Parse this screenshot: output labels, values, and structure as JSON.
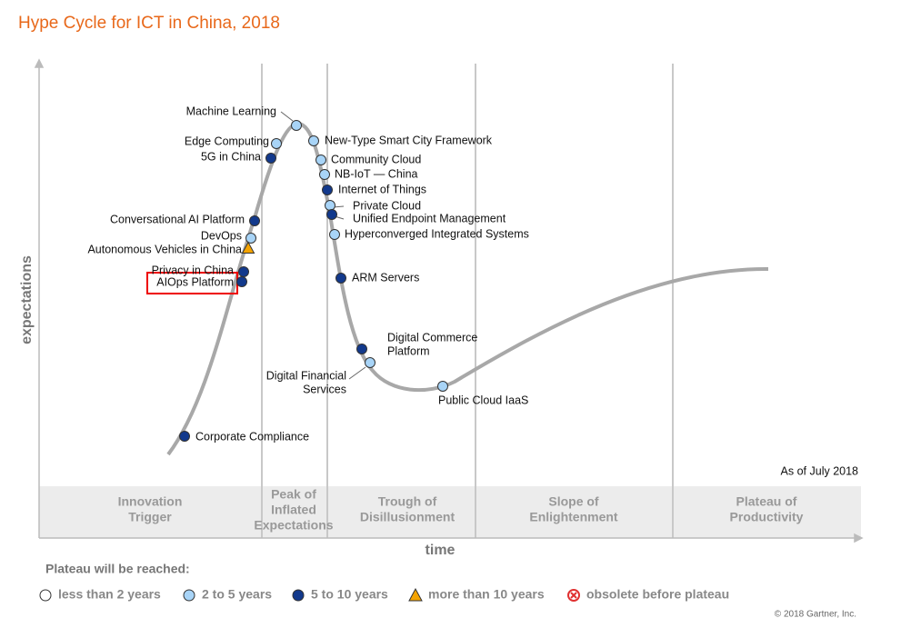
{
  "title": "Hype Cycle for ICT in China, 2018",
  "y_axis_label": "expectations",
  "x_axis_label": "time",
  "as_of": "As of July 2018",
  "phases": [
    {
      "lines": [
        "Innovation",
        "Trigger"
      ]
    },
    {
      "lines": [
        "Peak of",
        "Inflated",
        "Expectations"
      ]
    },
    {
      "lines": [
        "Trough of",
        "Disillusionment"
      ]
    },
    {
      "lines": [
        "Slope of",
        "Enlightenment"
      ]
    },
    {
      "lines": [
        "Plateau of",
        "Productivity"
      ]
    }
  ],
  "nodes": [
    {
      "lines": [
        "Machine Learning"
      ],
      "legend": 1
    },
    {
      "lines": [
        "Edge Computing"
      ],
      "legend": 1
    },
    {
      "lines": [
        "5G in China"
      ],
      "legend": 2
    },
    {
      "lines": [
        "New-Type Smart City Framework"
      ],
      "legend": 1
    },
    {
      "lines": [
        "Community Cloud"
      ],
      "legend": 1
    },
    {
      "lines": [
        "NB-IoT — China"
      ],
      "legend": 1
    },
    {
      "lines": [
        "Internet of Things"
      ],
      "legend": 2
    },
    {
      "lines": [
        "Private Cloud"
      ],
      "legend": 1
    },
    {
      "lines": [
        "Unified Endpoint Management"
      ],
      "legend": 2
    },
    {
      "lines": [
        "Hyperconverged Integrated Systems"
      ],
      "legend": 1
    },
    {
      "lines": [
        "Conversational AI Platform"
      ],
      "legend": 2
    },
    {
      "lines": [
        "DevOps"
      ],
      "legend": 1
    },
    {
      "lines": [
        "Autonomous Vehicles in China"
      ],
      "legend": 3
    },
    {
      "lines": [
        "Privacy in China"
      ],
      "legend": 2
    },
    {
      "lines": [
        "AIOps Platform"
      ],
      "legend": 2
    },
    {
      "lines": [
        "ARM Servers"
      ],
      "legend": 2
    },
    {
      "lines": [
        "Digital Commerce",
        "Platform"
      ],
      "legend": 2
    },
    {
      "lines": [
        "Digital Financial",
        "Services"
      ],
      "legend": 1
    },
    {
      "lines": [
        "Public Cloud IaaS"
      ],
      "legend": 1
    },
    {
      "lines": [
        "Corporate Compliance"
      ],
      "legend": 2
    }
  ],
  "legend": {
    "title": "Plateau will be reached:",
    "items": [
      {
        "label": "less than 2 years",
        "marker": "circle",
        "color": "#ffffff"
      },
      {
        "label": "2 to 5 years",
        "marker": "circle",
        "color": "#a8d4f7"
      },
      {
        "label": "5 to 10 years",
        "marker": "circle",
        "color": "#12398c"
      },
      {
        "label": "more than 10 years",
        "marker": "triangle",
        "color": "#f4a300"
      },
      {
        "label": "obsolete before plateau",
        "marker": "cross",
        "color": "#e03030"
      }
    ]
  },
  "copyright": "© 2018 Gartner, Inc."
}
